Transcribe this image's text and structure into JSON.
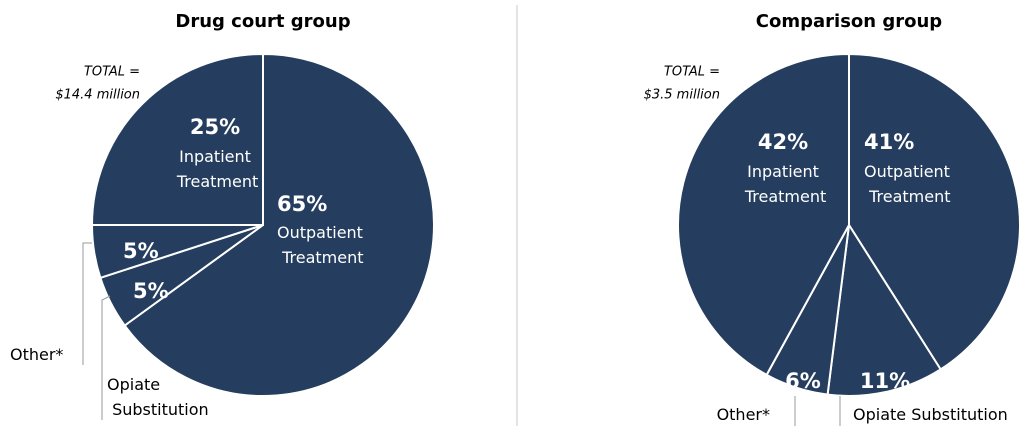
{
  "chart_data": [
    {
      "type": "pie",
      "title": "Drug court group",
      "annotation": [
        "TOTAL =",
        "$14.4 million"
      ],
      "categories": [
        "Outpatient Treatment",
        "Opiate Substitution",
        "Other*",
        "Inpatient Treatment"
      ],
      "values": [
        65,
        5,
        5,
        25
      ],
      "value_labels": [
        "65%",
        "5%",
        "5%",
        "25%"
      ],
      "color": "#253d5e"
    },
    {
      "type": "pie",
      "title": "Comparison group",
      "annotation": [
        "TOTAL =",
        "$3.5 million"
      ],
      "categories": [
        "Outpatient Treatment",
        "Opiate Substitution",
        "Other*",
        "Inpatient Treatment"
      ],
      "values": [
        41,
        11,
        6,
        42
      ],
      "value_labels": [
        "41%",
        "11%",
        "6%",
        "42%"
      ],
      "color": "#253d5e"
    }
  ]
}
